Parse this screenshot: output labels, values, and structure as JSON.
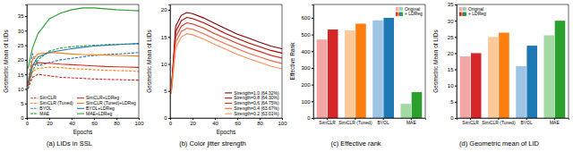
{
  "chart_data": [
    {
      "type": "line",
      "title": "(a) LIDs in SSL",
      "xlabel": "Epochs",
      "ylabel": "Geometric Mean of LIDs",
      "x": [
        1,
        5,
        10,
        20,
        30,
        40,
        50,
        60,
        70,
        80,
        90,
        100
      ],
      "xlim": [
        0,
        100
      ],
      "xticks": [
        0,
        20,
        40,
        60,
        80,
        100
      ],
      "ylim": [
        0,
        39
      ],
      "yticks": [
        0,
        5,
        10,
        15,
        20,
        25,
        30,
        35
      ],
      "grid": false,
      "legend": "lower right",
      "series": [
        {
          "name": "SimCLR",
          "color": "#d62728",
          "line_style": "dashed",
          "values": [
            10,
            14,
            15,
            14.5,
            14,
            13.8,
            13.6,
            13.4,
            13.3,
            13.2,
            13.1,
            13
          ]
        },
        {
          "name": "SimCLR (Tuned)",
          "color": "#ff7f0e",
          "line_style": "dashed",
          "values": [
            11,
            16,
            17,
            17.5,
            17.3,
            17,
            16.8,
            16.6,
            16.4,
            16.3,
            16.2,
            16
          ]
        },
        {
          "name": "BYOL",
          "color": "#1f77b4",
          "line_style": "dashed",
          "values": [
            12,
            22,
            18,
            19,
            20,
            20.5,
            21,
            21.5,
            21.8,
            22,
            22.2,
            22.5
          ]
        },
        {
          "name": "MAE",
          "color": "#2ca02c",
          "line_style": "dashed",
          "values": [
            10,
            16,
            20,
            23,
            24,
            24.5,
            24.8,
            25,
            25.2,
            25.3,
            25.4,
            25.5
          ]
        },
        {
          "name": "SimCLR+LDReg",
          "color": "#d62728",
          "line_style": "solid",
          "values": [
            11,
            18,
            19,
            18.8,
            18.5,
            18.3,
            18.1,
            17.9,
            17.7,
            17.6,
            17.5,
            17.4
          ]
        },
        {
          "name": "SimCLR (Tuned)+LDReg",
          "color": "#ff7f0e",
          "line_style": "solid",
          "values": [
            12,
            20,
            22,
            22.5,
            22.3,
            22,
            21.8,
            21.7,
            21.6,
            21.5,
            21.4,
            21.3
          ]
        },
        {
          "name": "BYOL+LDReg",
          "color": "#1f77b4",
          "line_style": "solid",
          "values": [
            12,
            18,
            21,
            22.5,
            23.2,
            23.8,
            24.3,
            24.7,
            25,
            25.2,
            25.4,
            25.6
          ]
        },
        {
          "name": "MAE+LDReg",
          "color": "#2ca02c",
          "line_style": "solid",
          "values": [
            17,
            24,
            29,
            34,
            36,
            37.2,
            37.8,
            37.8,
            37.5,
            37.2,
            37,
            36.8
          ]
        }
      ]
    },
    {
      "type": "line",
      "title": "(b) Color jitter strength",
      "xlabel": "Epochs",
      "ylabel": "Geometric Mean of LIDs",
      "x": [
        1,
        5,
        10,
        15,
        20,
        30,
        40,
        50,
        60,
        70,
        80,
        90,
        100
      ],
      "xlim": [
        0,
        100
      ],
      "xticks": [
        0,
        20,
        40,
        60,
        80,
        100
      ],
      "ylim": [
        0,
        21
      ],
      "yticks": [
        0,
        5,
        10,
        15,
        20
      ],
      "grid": false,
      "legend": "lower right",
      "series": [
        {
          "name": "Strength=1.0 (64.32%)",
          "color": "#7f0000",
          "line_style": "solid",
          "values": [
            5,
            17,
            19,
            19.5,
            19.3,
            18.5,
            17.5,
            16.5,
            15.5,
            14.8,
            14,
            13.3,
            12.8
          ]
        },
        {
          "name": "Strength=0.8 (64.30%)",
          "color": "#b30000",
          "line_style": "solid",
          "values": [
            5,
            16,
            18,
            18.6,
            18.4,
            17.6,
            16.6,
            15.6,
            14.7,
            13.9,
            13.2,
            12.5,
            12
          ]
        },
        {
          "name": "Strength=0.6 (64.75%)",
          "color": "#d7301f",
          "line_style": "solid",
          "values": [
            5,
            15,
            17,
            17.6,
            17.4,
            16.6,
            15.6,
            14.7,
            13.8,
            13,
            12.3,
            11.6,
            11.1
          ]
        },
        {
          "name": "Strength=0.4 (63.67%)",
          "color": "#ef6548",
          "line_style": "solid",
          "values": [
            4.5,
            14,
            16,
            16.6,
            16.4,
            15.6,
            14.6,
            13.7,
            12.8,
            12,
            11.3,
            10.6,
            10.1
          ]
        },
        {
          "name": "Strength=0.2 (63.01%)",
          "color": "#fc8d59",
          "line_style": "solid",
          "values": [
            4.5,
            13,
            15,
            15.6,
            15.4,
            14.6,
            13.6,
            12.7,
            11.8,
            11,
            10.3,
            9.6,
            9.1
          ]
        }
      ]
    },
    {
      "type": "bar",
      "title": "(c) Effective rank",
      "ylabel": "Effective Rank",
      "categories": [
        "SimCLR",
        "SimCLR (Tuned)",
        "BYOL",
        "MAE"
      ],
      "ylim": [
        0,
        680
      ],
      "yticks": [
        0,
        100,
        200,
        300,
        400,
        500,
        600
      ],
      "grid": false,
      "legend": "upper right",
      "series": [
        {
          "name": "Original",
          "colors": [
            "#f4a6a6",
            "#ffc99a",
            "#9ec5e3",
            "#a3d9a3"
          ],
          "values": [
            470,
            525,
            585,
            85
          ]
        },
        {
          "name": "+ LDReg",
          "colors": [
            "#d62728",
            "#ff7f0e",
            "#1f77b4",
            "#2ca02c"
          ],
          "values": [
            530,
            565,
            600,
            155
          ]
        }
      ]
    },
    {
      "type": "bar",
      "title": "(d) Geometric mean of LID",
      "ylabel": "Geometric Mean of LIDs",
      "categories": [
        "SimCLR",
        "SimCLR (Tuned)",
        "BYOL",
        "MAE"
      ],
      "ylim": [
        0,
        35
      ],
      "yticks": [
        0,
        5,
        10,
        15,
        20,
        25,
        30,
        35
      ],
      "grid": false,
      "legend": "upper left",
      "series": [
        {
          "name": "Original",
          "colors": [
            "#f4a6a6",
            "#ffc99a",
            "#9ec5e3",
            "#a3d9a3"
          ],
          "values": [
            19,
            25,
            16,
            25.5
          ]
        },
        {
          "name": "+ LDReg",
          "colors": [
            "#d62728",
            "#ff7f0e",
            "#1f77b4",
            "#2ca02c"
          ],
          "values": [
            20,
            26.3,
            22.3,
            30
          ]
        }
      ]
    }
  ]
}
